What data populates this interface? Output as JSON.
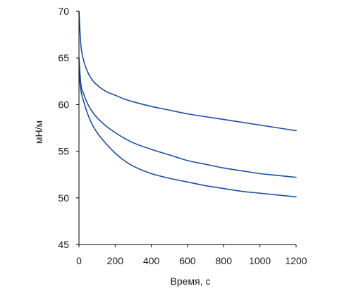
{
  "chart_data": {
    "type": "line",
    "title": "",
    "xlabel": "Время, с",
    "ylabel": "мН/м",
    "xlim": [
      0,
      1200
    ],
    "ylim": [
      45,
      70
    ],
    "xticks": [
      0,
      200,
      400,
      600,
      800,
      1000,
      1200
    ],
    "yticks": [
      45,
      50,
      55,
      60,
      65,
      70
    ],
    "grid": false,
    "line_color": "#1f4e9c",
    "axis_color": "#000000",
    "series": [
      {
        "x": [
          0,
          10,
          25,
          50,
          75,
          100,
          150,
          200,
          250,
          300,
          400,
          500,
          600,
          700,
          800,
          900,
          1000,
          1100,
          1200
        ],
        "y": [
          70.0,
          66.5,
          64.8,
          63.4,
          62.6,
          62.1,
          61.4,
          61.0,
          60.6,
          60.3,
          59.8,
          59.4,
          59.0,
          58.7,
          58.4,
          58.1,
          57.8,
          57.5,
          57.2
        ]
      },
      {
        "x": [
          0,
          10,
          25,
          50,
          75,
          100,
          150,
          200,
          250,
          300,
          400,
          500,
          600,
          700,
          800,
          900,
          1000,
          1100,
          1200
        ],
        "y": [
          65.0,
          62.3,
          61.2,
          60.0,
          59.2,
          58.6,
          57.7,
          57.0,
          56.4,
          55.9,
          55.2,
          54.6,
          54.0,
          53.6,
          53.2,
          52.9,
          52.6,
          52.4,
          52.2
        ]
      },
      {
        "x": [
          0,
          10,
          25,
          50,
          75,
          100,
          150,
          200,
          250,
          300,
          400,
          500,
          600,
          700,
          800,
          900,
          1000,
          1100,
          1200
        ],
        "y": [
          63.5,
          61.6,
          60.4,
          58.9,
          57.8,
          57.0,
          55.8,
          54.8,
          54.0,
          53.4,
          52.6,
          52.1,
          51.7,
          51.3,
          51.0,
          50.7,
          50.5,
          50.3,
          50.1
        ]
      }
    ]
  }
}
